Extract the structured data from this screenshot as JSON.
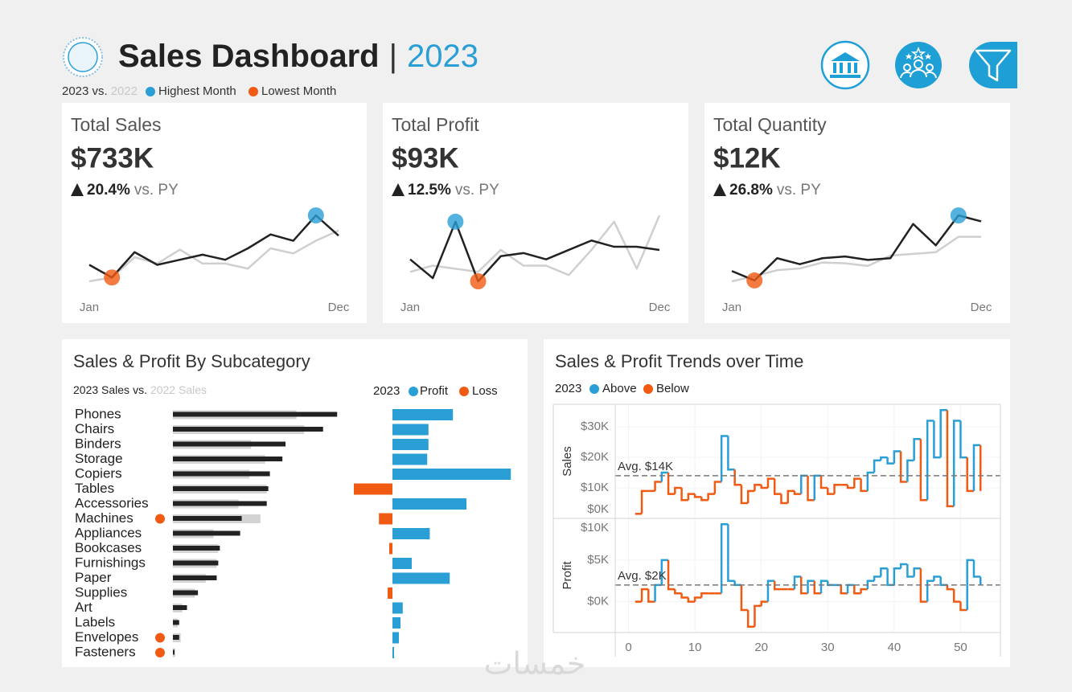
{
  "header": {
    "title": "Sales Dashboard",
    "separator": "|",
    "year": "2023",
    "comparison": {
      "current": "2023 vs.",
      "previous": "2022"
    },
    "legend": [
      {
        "name": "Highest Month",
        "color": "#2a9fd6"
      },
      {
        "name": "Lowest Month",
        "color": "#f15a13"
      }
    ]
  },
  "watermark": "خمسات",
  "chart_data": [
    {
      "type": "sparkline",
      "title": "Total Sales",
      "value": "$733K",
      "change": "20.4%",
      "change_suffix": "vs. PY",
      "categories": [
        "Jan",
        null,
        null,
        null,
        null,
        null,
        null,
        null,
        null,
        null,
        null,
        "Dec"
      ],
      "series": [
        {
          "color": "#222222",
          "values": [
            45,
            35,
            55,
            45,
            49,
            53,
            49,
            58,
            69,
            64,
            84,
            68
          ]
        },
        {
          "color": "#cfcfcf",
          "values": [
            32,
            35,
            51,
            46,
            57,
            46,
            46,
            42,
            58,
            54,
            64,
            72
          ]
        }
      ]
    },
    {
      "type": "sparkline",
      "title": "Total Profit",
      "value": "$93K",
      "change": "12.5%",
      "change_suffix": "vs. PY",
      "categories": [
        "Jan",
        null,
        null,
        null,
        null,
        null,
        null,
        null,
        null,
        null,
        null,
        "Dec"
      ],
      "series": [
        {
          "color": "#222222",
          "values": [
            7,
            4,
            13,
            3.5,
            7.5,
            8,
            7,
            8.5,
            10,
            9,
            9,
            8.5
          ]
        },
        {
          "color": "#cfcfcf",
          "values": [
            5,
            6,
            5.5,
            5,
            8.5,
            6,
            6,
            4.5,
            8.5,
            13,
            5.5,
            14
          ]
        }
      ]
    },
    {
      "type": "sparkline",
      "title": "Total Quantity",
      "value": "$12K",
      "change": "26.8%",
      "change_suffix": "vs. PY",
      "categories": [
        "Jan",
        null,
        null,
        null,
        null,
        null,
        null,
        null,
        null,
        null,
        null,
        "Dec"
      ],
      "series": [
        {
          "color": "#222222",
          "values": [
            700,
            590,
            850,
            780,
            850,
            870,
            830,
            850,
            1250,
            1000,
            1350,
            1280
          ]
        },
        {
          "color": "#cfcfcf",
          "values": [
            580,
            640,
            710,
            730,
            800,
            790,
            760,
            880,
            900,
            920,
            1100,
            1100
          ]
        }
      ]
    },
    {
      "type": "bar-compare",
      "title": "Sales & Profit By Subcategory",
      "legend": {
        "current": "2023 Sales",
        "joiner": "vs.",
        "previous": "2022 Sales"
      },
      "categories": [
        "Phones",
        "Chairs",
        "Binders",
        "Storage",
        "Copiers",
        "Tables",
        "Accessories",
        "Machines",
        "Appliances",
        "Bookcases",
        "Furnishings",
        "Paper",
        "Supplies",
        "Art",
        "Labels",
        "Envelopes",
        "Fasteners"
      ],
      "series": [
        {
          "color": "#222222",
          "values": [
            105,
            96,
            72,
            70,
            62,
            61,
            60,
            44,
            43,
            30,
            29,
            28,
            16,
            9,
            4,
            4,
            1
          ]
        },
        {
          "color": "#d3d3d3",
          "values": [
            79,
            84,
            50,
            59,
            49,
            60,
            42,
            56,
            26,
            29,
            28,
            21,
            14,
            6,
            3,
            5,
            1.5
          ]
        }
      ],
      "profit": {
        "title": "2023",
        "positive": {
          "name": "Profit",
          "color": "#2a9fd6"
        },
        "negative": {
          "name": "Loss",
          "color": "#f15a13"
        },
        "values": [
          9.4,
          5.6,
          5.6,
          5.4,
          18.4,
          -6,
          11.5,
          -2.1,
          5.8,
          -0.5,
          3,
          8.9,
          -0.75,
          1.6,
          1.25,
          1,
          0.25
        ]
      }
    },
    {
      "type": "step",
      "title": "Sales & Profit Trends over Time",
      "legend_title": "2023",
      "above": {
        "name": "Above",
        "color": "#2a9fd6"
      },
      "below": {
        "name": "Below",
        "color": "#f15a13"
      },
      "x": [
        1,
        2,
        3,
        4,
        5,
        6,
        7,
        8,
        9,
        10,
        11,
        12,
        13,
        14,
        15,
        16,
        17,
        18,
        19,
        20,
        21,
        22,
        23,
        24,
        25,
        26,
        27,
        28,
        29,
        30,
        31,
        32,
        33,
        34,
        35,
        36,
        37,
        38,
        39,
        40,
        41,
        42,
        43,
        44,
        45,
        46,
        47,
        48,
        49,
        50,
        51,
        52,
        53
      ],
      "xlim": [
        -2,
        56
      ],
      "xticks": [
        0,
        10,
        20,
        30,
        40,
        50
      ],
      "panels": [
        {
          "ylabel": "Sales",
          "ylim": [
            0,
            37.4
          ],
          "yticks": [
            {
              "value": 0,
              "label": "$0K"
            },
            {
              "value": 10,
              "label": "$10K"
            },
            {
              "value": 20,
              "label": "$20K"
            },
            {
              "value": 30,
              "label": "$30K"
            }
          ],
          "average": {
            "value": 14,
            "label": "Avg. $14K"
          },
          "values": [
            1.5,
            9,
            9,
            12,
            15,
            8,
            10,
            6,
            8,
            7,
            6,
            8,
            12,
            27,
            16,
            11,
            5,
            9,
            11,
            10,
            13,
            8,
            5,
            9,
            8,
            14,
            6,
            14,
            10,
            8,
            11,
            11,
            10,
            13,
            9,
            15,
            19,
            20,
            18,
            22,
            12,
            19,
            26,
            6,
            32,
            20,
            35.5,
            4,
            32,
            20,
            9,
            24,
            9
          ]
        },
        {
          "ylabel": "Profit",
          "ylim": [
            -3.7,
            10
          ],
          "yticks": [
            {
              "value": 0,
              "label": "$0K"
            },
            {
              "value": 5,
              "label": "$5K"
            },
            {
              "value": 10,
              "label": "$10K"
            }
          ],
          "average": {
            "value": 2,
            "label": "Avg. $2K"
          },
          "values": [
            0,
            1.5,
            0,
            2,
            5,
            1.5,
            1,
            0.5,
            0,
            0.5,
            1,
            1,
            1,
            9.3,
            2.5,
            2,
            -1,
            -3,
            -0.5,
            0,
            2.5,
            1.5,
            1.5,
            1.5,
            3,
            1,
            2.5,
            1,
            2.5,
            2,
            2,
            1,
            2,
            1,
            1.5,
            2.5,
            3,
            4,
            2,
            4,
            4.5,
            3,
            4,
            0,
            2.5,
            3,
            2,
            1.5,
            0,
            -1,
            5,
            3,
            2
          ]
        }
      ]
    }
  ]
}
